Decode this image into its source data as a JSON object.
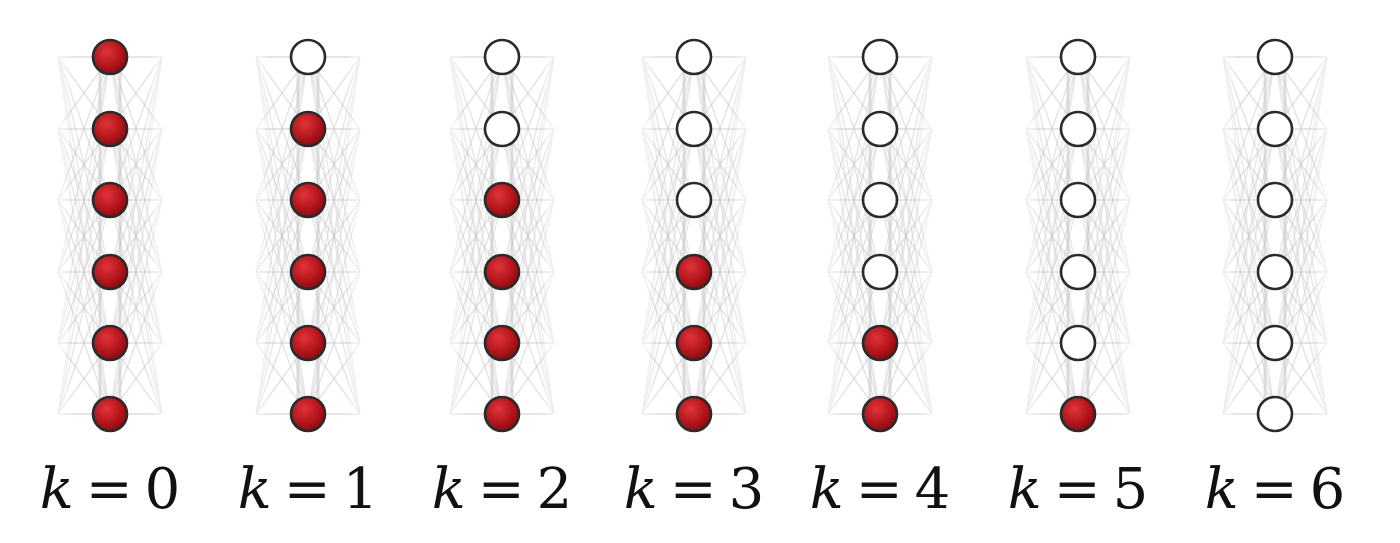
{
  "panels": [
    {
      "label_var": "k",
      "label_op": "=",
      "label_val": "0",
      "filled": [
        true,
        true,
        true,
        true,
        true,
        true
      ]
    },
    {
      "label_var": "k",
      "label_op": "=",
      "label_val": "1",
      "filled": [
        false,
        true,
        true,
        true,
        true,
        true
      ]
    },
    {
      "label_var": "k",
      "label_op": "=",
      "label_val": "2",
      "filled": [
        false,
        false,
        true,
        true,
        true,
        true
      ]
    },
    {
      "label_var": "k",
      "label_op": "=",
      "label_val": "3",
      "filled": [
        false,
        false,
        false,
        true,
        true,
        true
      ]
    },
    {
      "label_var": "k",
      "label_op": "=",
      "label_val": "4",
      "filled": [
        false,
        false,
        false,
        false,
        true,
        true
      ]
    },
    {
      "label_var": "k",
      "label_op": "=",
      "label_val": "5",
      "filled": [
        false,
        false,
        false,
        false,
        false,
        true
      ]
    },
    {
      "label_var": "k",
      "label_op": "=",
      "label_val": "6",
      "filled": [
        false,
        false,
        false,
        false,
        false,
        false
      ]
    }
  ],
  "colors": {
    "filled_node": "#b3151b",
    "filled_node_highlight": "#d9272e",
    "node_stroke": "#2a2a2a",
    "empty_node_fill": "#ffffff",
    "edge": "#c8c8c8"
  }
}
